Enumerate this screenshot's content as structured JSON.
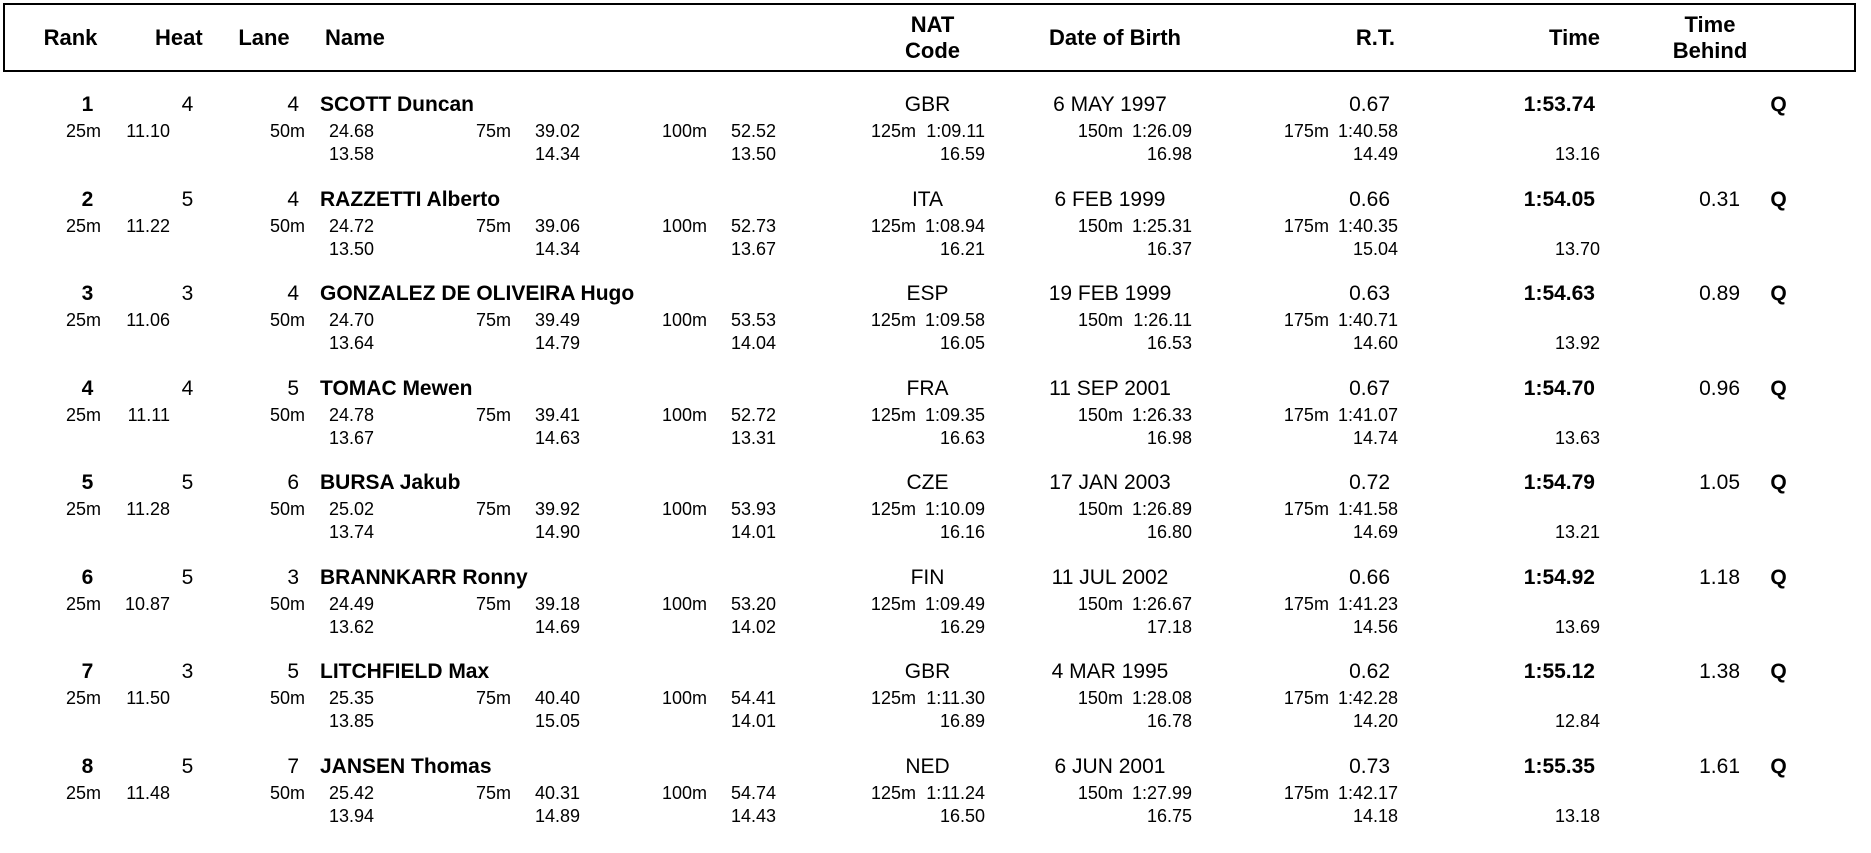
{
  "header": {
    "rank": "Rank",
    "heat": "Heat",
    "lane": "Lane",
    "name": "Name",
    "nat_line1": "NAT",
    "nat_line2": "Code",
    "dob": "Date of Birth",
    "rt": "R.T.",
    "time": "Time",
    "behind_line1": "Time",
    "behind_line2": "Behind"
  },
  "results": [
    {
      "rank": "1",
      "heat": "4",
      "lane": "4",
      "name": "SCOTT Duncan",
      "nat": "GBR",
      "dob": "6 MAY 1997",
      "rt": "0.67",
      "time": "1:53.74",
      "behind": "",
      "qualified": "Q",
      "final_diff": "13.16",
      "splits": [
        {
          "label": "25m",
          "value": "11.10",
          "diff": ""
        },
        {
          "label": "50m",
          "value": "24.68",
          "diff": "13.58"
        },
        {
          "label": "75m",
          "value": "39.02",
          "diff": "14.34"
        },
        {
          "label": "100m",
          "value": "52.52",
          "diff": "13.50"
        },
        {
          "label": "125m",
          "value": "1:09.11",
          "diff": "16.59"
        },
        {
          "label": "150m",
          "value": "1:26.09",
          "diff": "16.98"
        },
        {
          "label": "175m",
          "value": "1:40.58",
          "diff": "14.49"
        }
      ]
    },
    {
      "rank": "2",
      "heat": "5",
      "lane": "4",
      "name": "RAZZETTI Alberto",
      "nat": "ITA",
      "dob": "6 FEB 1999",
      "rt": "0.66",
      "time": "1:54.05",
      "behind": "0.31",
      "qualified": "Q",
      "final_diff": "13.70",
      "splits": [
        {
          "label": "25m",
          "value": "11.22",
          "diff": ""
        },
        {
          "label": "50m",
          "value": "24.72",
          "diff": "13.50"
        },
        {
          "label": "75m",
          "value": "39.06",
          "diff": "14.34"
        },
        {
          "label": "100m",
          "value": "52.73",
          "diff": "13.67"
        },
        {
          "label": "125m",
          "value": "1:08.94",
          "diff": "16.21"
        },
        {
          "label": "150m",
          "value": "1:25.31",
          "diff": "16.37"
        },
        {
          "label": "175m",
          "value": "1:40.35",
          "diff": "15.04"
        }
      ]
    },
    {
      "rank": "3",
      "heat": "3",
      "lane": "4",
      "name": "GONZALEZ DE OLIVEIRA Hugo",
      "nat": "ESP",
      "dob": "19 FEB 1999",
      "rt": "0.63",
      "time": "1:54.63",
      "behind": "0.89",
      "qualified": "Q",
      "final_diff": "13.92",
      "splits": [
        {
          "label": "25m",
          "value": "11.06",
          "diff": ""
        },
        {
          "label": "50m",
          "value": "24.70",
          "diff": "13.64"
        },
        {
          "label": "75m",
          "value": "39.49",
          "diff": "14.79"
        },
        {
          "label": "100m",
          "value": "53.53",
          "diff": "14.04"
        },
        {
          "label": "125m",
          "value": "1:09.58",
          "diff": "16.05"
        },
        {
          "label": "150m",
          "value": "1:26.11",
          "diff": "16.53"
        },
        {
          "label": "175m",
          "value": "1:40.71",
          "diff": "14.60"
        }
      ]
    },
    {
      "rank": "4",
      "heat": "4",
      "lane": "5",
      "name": "TOMAC Mewen",
      "nat": "FRA",
      "dob": "11 SEP 2001",
      "rt": "0.67",
      "time": "1:54.70",
      "behind": "0.96",
      "qualified": "Q",
      "final_diff": "13.63",
      "splits": [
        {
          "label": "25m",
          "value": "11.11",
          "diff": ""
        },
        {
          "label": "50m",
          "value": "24.78",
          "diff": "13.67"
        },
        {
          "label": "75m",
          "value": "39.41",
          "diff": "14.63"
        },
        {
          "label": "100m",
          "value": "52.72",
          "diff": "13.31"
        },
        {
          "label": "125m",
          "value": "1:09.35",
          "diff": "16.63"
        },
        {
          "label": "150m",
          "value": "1:26.33",
          "diff": "16.98"
        },
        {
          "label": "175m",
          "value": "1:41.07",
          "diff": "14.74"
        }
      ]
    },
    {
      "rank": "5",
      "heat": "5",
      "lane": "6",
      "name": "BURSA Jakub",
      "nat": "CZE",
      "dob": "17 JAN 2003",
      "rt": "0.72",
      "time": "1:54.79",
      "behind": "1.05",
      "qualified": "Q",
      "final_diff": "13.21",
      "splits": [
        {
          "label": "25m",
          "value": "11.28",
          "diff": ""
        },
        {
          "label": "50m",
          "value": "25.02",
          "diff": "13.74"
        },
        {
          "label": "75m",
          "value": "39.92",
          "diff": "14.90"
        },
        {
          "label": "100m",
          "value": "53.93",
          "diff": "14.01"
        },
        {
          "label": "125m",
          "value": "1:10.09",
          "diff": "16.16"
        },
        {
          "label": "150m",
          "value": "1:26.89",
          "diff": "16.80"
        },
        {
          "label": "175m",
          "value": "1:41.58",
          "diff": "14.69"
        }
      ]
    },
    {
      "rank": "6",
      "heat": "5",
      "lane": "3",
      "name": "BRANNKARR Ronny",
      "nat": "FIN",
      "dob": "11 JUL 2002",
      "rt": "0.66",
      "time": "1:54.92",
      "behind": "1.18",
      "qualified": "Q",
      "final_diff": "13.69",
      "splits": [
        {
          "label": "25m",
          "value": "10.87",
          "diff": ""
        },
        {
          "label": "50m",
          "value": "24.49",
          "diff": "13.62"
        },
        {
          "label": "75m",
          "value": "39.18",
          "diff": "14.69"
        },
        {
          "label": "100m",
          "value": "53.20",
          "diff": "14.02"
        },
        {
          "label": "125m",
          "value": "1:09.49",
          "diff": "16.29"
        },
        {
          "label": "150m",
          "value": "1:26.67",
          "diff": "17.18"
        },
        {
          "label": "175m",
          "value": "1:41.23",
          "diff": "14.56"
        }
      ]
    },
    {
      "rank": "7",
      "heat": "3",
      "lane": "5",
      "name": "LITCHFIELD Max",
      "nat": "GBR",
      "dob": "4 MAR 1995",
      "rt": "0.62",
      "time": "1:55.12",
      "behind": "1.38",
      "qualified": "Q",
      "final_diff": "12.84",
      "splits": [
        {
          "label": "25m",
          "value": "11.50",
          "diff": ""
        },
        {
          "label": "50m",
          "value": "25.35",
          "diff": "13.85"
        },
        {
          "label": "75m",
          "value": "40.40",
          "diff": "15.05"
        },
        {
          "label": "100m",
          "value": "54.41",
          "diff": "14.01"
        },
        {
          "label": "125m",
          "value": "1:11.30",
          "diff": "16.89"
        },
        {
          "label": "150m",
          "value": "1:28.08",
          "diff": "16.78"
        },
        {
          "label": "175m",
          "value": "1:42.28",
          "diff": "14.20"
        }
      ]
    },
    {
      "rank": "8",
      "heat": "5",
      "lane": "7",
      "name": "JANSEN Thomas",
      "nat": "NED",
      "dob": "6 JUN 2001",
      "rt": "0.73",
      "time": "1:55.35",
      "behind": "1.61",
      "qualified": "Q",
      "final_diff": "13.18",
      "splits": [
        {
          "label": "25m",
          "value": "11.48",
          "diff": ""
        },
        {
          "label": "50m",
          "value": "25.42",
          "diff": "13.94"
        },
        {
          "label": "75m",
          "value": "40.31",
          "diff": "14.89"
        },
        {
          "label": "100m",
          "value": "54.74",
          "diff": "14.43"
        },
        {
          "label": "125m",
          "value": "1:11.24",
          "diff": "16.50"
        },
        {
          "label": "150m",
          "value": "1:27.99",
          "diff": "16.75"
        },
        {
          "label": "175m",
          "value": "1:42.17",
          "diff": "14.18"
        }
      ]
    }
  ]
}
